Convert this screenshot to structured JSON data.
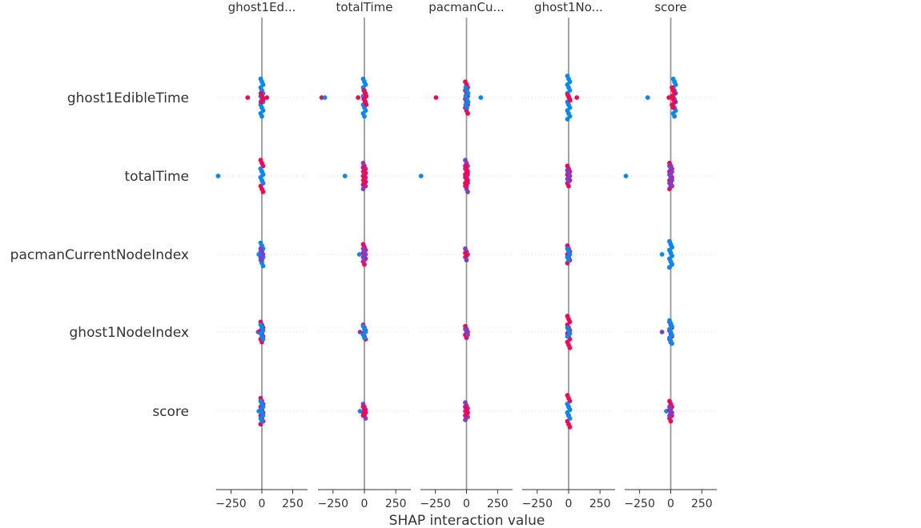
{
  "chart_data": {
    "type": "scatter",
    "xlabel": "SHAP interaction value",
    "features": [
      "ghost1EdibleTime",
      "totalTime",
      "pacmanCurrentNodeIndex",
      "ghost1NodeIndex",
      "score"
    ],
    "columns": [
      "ghost1Ed...",
      "totalTime",
      "pacmanCu...",
      "ghost1No...",
      "score"
    ],
    "x_ticks": [
      -250,
      0,
      250
    ],
    "xlim": [
      -370,
      370
    ],
    "colors": {
      "low": "#008bfb",
      "mid": "#7b3fd0",
      "high": "#ff0052",
      "zero_line": "#999999",
      "grid": "#cccccc"
    },
    "points": [
      {
        "col": 0,
        "row": 0,
        "x": -115,
        "c": "high"
      },
      {
        "col": 0,
        "row": 0,
        "x": 40,
        "c": "high"
      },
      {
        "col": 0,
        "row": 0,
        "x": 0,
        "c": "low",
        "n": 14
      },
      {
        "col": 0,
        "row": 0,
        "x": 2,
        "c": "high",
        "n": 4
      },
      {
        "col": 0,
        "row": 1,
        "x": -355,
        "c": "low"
      },
      {
        "col": 0,
        "row": 1,
        "x": 0,
        "c": "high",
        "n": 12
      },
      {
        "col": 0,
        "row": 1,
        "x": 0,
        "c": "low",
        "n": 6
      },
      {
        "col": 0,
        "row": 2,
        "x": -25,
        "c": "low"
      },
      {
        "col": 0,
        "row": 2,
        "x": 0,
        "c": "low",
        "n": 9
      },
      {
        "col": 0,
        "row": 2,
        "x": 0,
        "c": "mid",
        "n": 5
      },
      {
        "col": 0,
        "row": 3,
        "x": -30,
        "c": "mid"
      },
      {
        "col": 0,
        "row": 3,
        "x": 0,
        "c": "high",
        "n": 8
      },
      {
        "col": 0,
        "row": 3,
        "x": 0,
        "c": "low",
        "n": 6
      },
      {
        "col": 0,
        "row": 4,
        "x": -25,
        "c": "low"
      },
      {
        "col": 0,
        "row": 4,
        "x": 0,
        "c": "high",
        "n": 10
      },
      {
        "col": 0,
        "row": 4,
        "x": 0,
        "c": "low",
        "n": 8
      },
      {
        "col": 1,
        "row": 0,
        "x": -340,
        "c": "high"
      },
      {
        "col": 1,
        "row": 0,
        "x": -315,
        "c": "low"
      },
      {
        "col": 1,
        "row": 0,
        "x": -50,
        "c": "high"
      },
      {
        "col": 1,
        "row": 0,
        "x": 0,
        "c": "low",
        "n": 14
      },
      {
        "col": 1,
        "row": 0,
        "x": 5,
        "c": "high",
        "n": 6
      },
      {
        "col": 1,
        "row": 1,
        "x": -155,
        "c": "low"
      },
      {
        "col": 1,
        "row": 1,
        "x": 0,
        "c": "mid",
        "n": 10
      },
      {
        "col": 1,
        "row": 1,
        "x": 0,
        "c": "high",
        "n": 7
      },
      {
        "col": 1,
        "row": 2,
        "x": -40,
        "c": "low"
      },
      {
        "col": 1,
        "row": 2,
        "x": 0,
        "c": "high",
        "n": 8
      },
      {
        "col": 1,
        "row": 2,
        "x": 0,
        "c": "mid",
        "n": 5
      },
      {
        "col": 1,
        "row": 3,
        "x": -35,
        "c": "mid"
      },
      {
        "col": 1,
        "row": 3,
        "x": 0,
        "c": "high",
        "n": 6
      },
      {
        "col": 1,
        "row": 3,
        "x": 0,
        "c": "low",
        "n": 5
      },
      {
        "col": 1,
        "row": 4,
        "x": -35,
        "c": "low"
      },
      {
        "col": 1,
        "row": 4,
        "x": 0,
        "c": "mid",
        "n": 6
      },
      {
        "col": 1,
        "row": 4,
        "x": 0,
        "c": "high",
        "n": 4
      },
      {
        "col": 2,
        "row": 0,
        "x": -245,
        "c": "high"
      },
      {
        "col": 2,
        "row": 0,
        "x": 115,
        "c": "low"
      },
      {
        "col": 2,
        "row": 0,
        "x": 0,
        "c": "high",
        "n": 12
      },
      {
        "col": 2,
        "row": 0,
        "x": 3,
        "c": "low",
        "n": 8
      },
      {
        "col": 2,
        "row": 1,
        "x": -365,
        "c": "low"
      },
      {
        "col": 2,
        "row": 1,
        "x": 0,
        "c": "mid",
        "n": 12
      },
      {
        "col": 2,
        "row": 1,
        "x": 0,
        "c": "high",
        "n": 8
      },
      {
        "col": 2,
        "row": 2,
        "x": 0,
        "c": "mid",
        "n": 5
      },
      {
        "col": 2,
        "row": 2,
        "x": 0,
        "c": "high",
        "n": 2
      },
      {
        "col": 2,
        "row": 3,
        "x": 0,
        "c": "high",
        "n": 5
      },
      {
        "col": 2,
        "row": 3,
        "x": 0,
        "c": "mid",
        "n": 3
      },
      {
        "col": 2,
        "row": 4,
        "x": 0,
        "c": "mid",
        "n": 7
      },
      {
        "col": 2,
        "row": 4,
        "x": 0,
        "c": "high",
        "n": 4
      },
      {
        "col": 3,
        "row": 0,
        "x": 65,
        "c": "high"
      },
      {
        "col": 3,
        "row": 0,
        "x": 0,
        "c": "low",
        "n": 16
      },
      {
        "col": 3,
        "row": 0,
        "x": 2,
        "c": "high",
        "n": 3
      },
      {
        "col": 3,
        "row": 1,
        "x": 0,
        "c": "high",
        "n": 8
      },
      {
        "col": 3,
        "row": 1,
        "x": 0,
        "c": "mid",
        "n": 5
      },
      {
        "col": 3,
        "row": 2,
        "x": 0,
        "c": "high",
        "n": 7
      },
      {
        "col": 3,
        "row": 2,
        "x": 0,
        "c": "low",
        "n": 5
      },
      {
        "col": 3,
        "row": 3,
        "x": 0,
        "c": "high",
        "n": 12
      },
      {
        "col": 3,
        "row": 3,
        "x": 0,
        "c": "low",
        "n": 4
      },
      {
        "col": 3,
        "row": 4,
        "x": 0,
        "c": "high",
        "n": 12
      },
      {
        "col": 3,
        "row": 4,
        "x": 0,
        "c": "low",
        "n": 6
      },
      {
        "col": 4,
        "row": 0,
        "x": -185,
        "c": "low"
      },
      {
        "col": 4,
        "row": 0,
        "x": -15,
        "c": "high"
      },
      {
        "col": 4,
        "row": 0,
        "x": 30,
        "c": "low",
        "n": 14
      },
      {
        "col": 4,
        "row": 0,
        "x": 20,
        "c": "high",
        "n": 8
      },
      {
        "col": 4,
        "row": 1,
        "x": -360,
        "c": "low"
      },
      {
        "col": 4,
        "row": 1,
        "x": 0,
        "c": "high",
        "n": 10
      },
      {
        "col": 4,
        "row": 1,
        "x": 0,
        "c": "mid",
        "n": 8
      },
      {
        "col": 4,
        "row": 2,
        "x": -70,
        "c": "low"
      },
      {
        "col": 4,
        "row": 2,
        "x": 0,
        "c": "high",
        "n": 10
      },
      {
        "col": 4,
        "row": 2,
        "x": 0,
        "c": "low",
        "n": 10
      },
      {
        "col": 4,
        "row": 3,
        "x": -70,
        "c": "mid"
      },
      {
        "col": 4,
        "row": 3,
        "x": 0,
        "c": "high",
        "n": 8
      },
      {
        "col": 4,
        "row": 3,
        "x": 0,
        "c": "low",
        "n": 9
      },
      {
        "col": 4,
        "row": 4,
        "x": -35,
        "c": "low"
      },
      {
        "col": 4,
        "row": 4,
        "x": 0,
        "c": "high",
        "n": 8
      },
      {
        "col": 4,
        "row": 4,
        "x": 0,
        "c": "mid",
        "n": 4
      }
    ]
  }
}
